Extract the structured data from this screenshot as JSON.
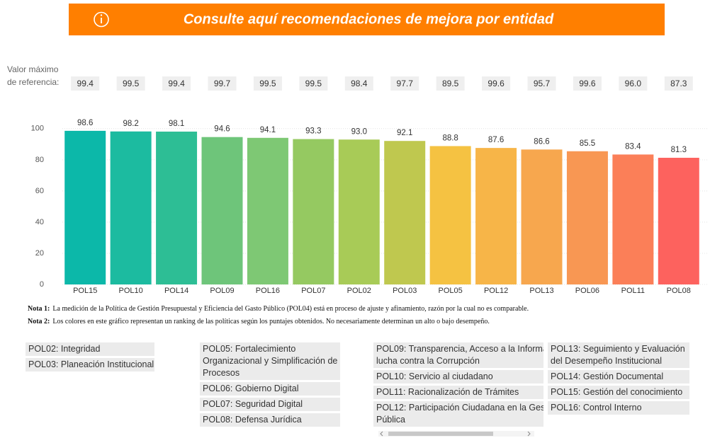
{
  "banner": {
    "title": "Consulte aquí recomendaciones de mejora por entidad"
  },
  "chart_data": {
    "type": "bar",
    "reference_label": [
      "Valor máximo",
      "de referencia:"
    ],
    "reference_values": [
      99.4,
      99.5,
      99.4,
      99.7,
      99.5,
      99.5,
      98.4,
      97.7,
      89.5,
      99.6,
      95.7,
      99.6,
      96.0,
      87.3
    ],
    "reference_labels": [
      "99.4",
      "99.5",
      "99.4",
      "99.7",
      "99.5",
      "99.5",
      "98.4",
      "97.7",
      "89.5",
      "99.6",
      "95.7",
      "99.6",
      "96.0",
      "87.3"
    ],
    "categories": [
      "POL15",
      "POL10",
      "POL14",
      "POL09",
      "POL16",
      "POL07",
      "POL02",
      "POL03",
      "POL05",
      "POL12",
      "POL13",
      "POL06",
      "POL11",
      "POL08"
    ],
    "values": [
      98.6,
      98.2,
      98.1,
      94.6,
      94.1,
      93.3,
      93.0,
      92.1,
      88.8,
      87.6,
      86.6,
      85.5,
      83.4,
      81.3
    ],
    "value_labels": [
      "98.6",
      "98.2",
      "98.1",
      "94.6",
      "94.1",
      "93.3",
      "93.0",
      "92.1",
      "88.8",
      "87.6",
      "86.6",
      "85.5",
      "83.4",
      "81.3"
    ],
    "colors": [
      "#0cb8a9",
      "#1cbba0",
      "#2dbe95",
      "#6ec57a",
      "#7ec874",
      "#95c961",
      "#a8cb57",
      "#bfc84f",
      "#f5c242",
      "#f7b548",
      "#f7a74e",
      "#f89753",
      "#fb7f58",
      "#fd625e"
    ],
    "ylim": [
      0,
      104
    ],
    "yticks": [
      0,
      20,
      40,
      60,
      80,
      100
    ],
    "grid": true
  },
  "notes": [
    {
      "label": "Nota 1:",
      "text": "La medición de la Política de Gestión Presupuestal y Eficiencia del Gasto Público (POL04) está en proceso de ajuste y afinamiento, razón por la cual no es comparable."
    },
    {
      "label": "Nota 2:",
      "text": "Los colores en este gráfico representan un ranking de las políticas según los puntajes  obtenidos. No necesariamente determinan un alto o bajo desempeño."
    }
  ],
  "legend_columns": [
    [
      {
        "lines": [
          "POL02: Integridad"
        ]
      },
      {
        "lines": [
          "POL03: Planeación Institucional"
        ]
      }
    ],
    [
      {
        "lines": [
          "POL05: Fortalecimiento",
          "Organizacional y Simplificación de",
          "Procesos"
        ]
      },
      {
        "lines": [
          "POL06: Gobierno Digital"
        ]
      },
      {
        "lines": [
          "POL07: Seguridad Digital"
        ]
      },
      {
        "lines": [
          "POL08: Defensa Jurídica"
        ]
      }
    ],
    [
      {
        "lines": [
          "POL09: Transparencia, Acceso a la Informa",
          "lucha contra la Corrupción"
        ]
      },
      {
        "lines": [
          "POL10: Servicio al ciudadano"
        ]
      },
      {
        "lines": [
          "POL11: Racionalización de Trámites"
        ]
      },
      {
        "lines": [
          "POL12: Participación Ciudadana en la Gest",
          "Pública"
        ]
      }
    ],
    [
      {
        "lines": [
          "POL13: Seguimiento y Evaluación",
          "del Desempeño Institucional"
        ]
      },
      {
        "lines": [
          "POL14: Gestión Documental"
        ]
      },
      {
        "lines": [
          "POL15: Gestión del conocimiento"
        ]
      },
      {
        "lines": [
          "POL16: Control Interno"
        ]
      }
    ]
  ]
}
